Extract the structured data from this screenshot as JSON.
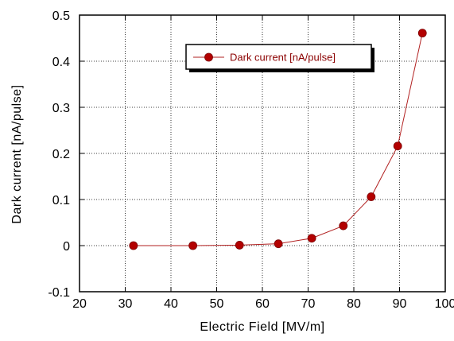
{
  "chart_data": {
    "type": "line",
    "title": "",
    "xlabel": "Electric Field [MV/m]",
    "ylabel": "Dark current [nA/pulse]",
    "xlim": [
      20,
      100
    ],
    "ylim": [
      -0.1,
      0.5
    ],
    "x_ticks": [
      20,
      30,
      40,
      50,
      60,
      70,
      80,
      90,
      100
    ],
    "y_ticks": [
      -0.1,
      0,
      0.1,
      0.2,
      0.3,
      0.4,
      0.5
    ],
    "x_tick_labels": [
      "20",
      "30",
      "40",
      "50",
      "60",
      "70",
      "80",
      "90",
      "100"
    ],
    "y_tick_labels": [
      "-0.1",
      "0",
      "0.1",
      "0.2",
      "0.3",
      "0.4",
      "0.5"
    ],
    "grid": true,
    "legend_position": "top-center",
    "series": [
      {
        "name": "Dark current [nA/pulse]",
        "color": "#b22222",
        "marker_color": "#b30000",
        "x": [
          31.8,
          44.8,
          55.0,
          63.5,
          70.8,
          77.7,
          83.8,
          89.6,
          95.0
        ],
        "y": [
          0.0,
          0.0,
          0.001,
          0.004,
          0.016,
          0.043,
          0.106,
          0.216,
          0.461
        ]
      }
    ]
  }
}
